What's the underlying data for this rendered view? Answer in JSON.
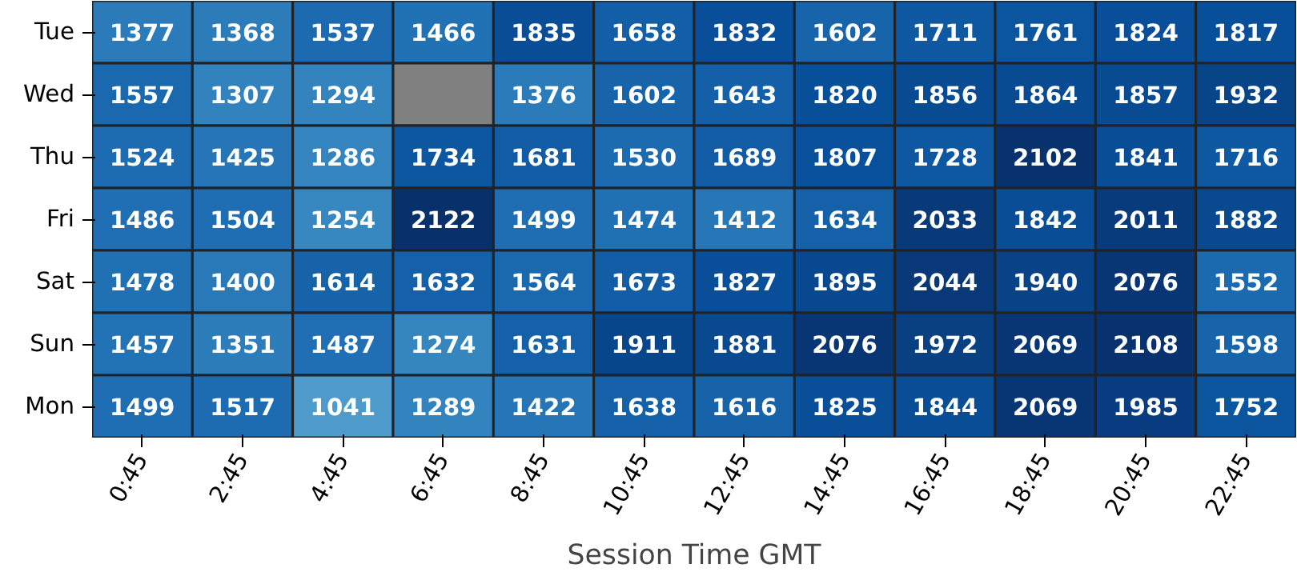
{
  "chart_data": {
    "type": "heatmap",
    "xlabel": "Session Time GMT",
    "categories": [
      "0:45",
      "2:45",
      "4:45",
      "6:45",
      "8:45",
      "10:45",
      "12:45",
      "14:45",
      "16:45",
      "18:45",
      "20:45",
      "22:45"
    ],
    "y_categories": [
      "Tue",
      "Wed",
      "Thu",
      "Fri",
      "Sat",
      "Sun",
      "Mon"
    ],
    "cells": [
      [
        1377,
        1368,
        1537,
        1466,
        1835,
        1658,
        1832,
        1602,
        1711,
        1761,
        1824,
        1817
      ],
      [
        1557,
        1307,
        1294,
        null,
        1376,
        1602,
        1643,
        1820,
        1856,
        1864,
        1857,
        1932
      ],
      [
        1524,
        1425,
        1286,
        1734,
        1681,
        1530,
        1689,
        1807,
        1728,
        2102,
        1841,
        1716
      ],
      [
        1486,
        1504,
        1254,
        2122,
        1499,
        1474,
        1412,
        1634,
        2033,
        1842,
        2011,
        1882
      ],
      [
        1478,
        1400,
        1614,
        1632,
        1564,
        1673,
        1827,
        1895,
        2044,
        1940,
        2076,
        1552
      ],
      [
        1457,
        1351,
        1487,
        1274,
        1631,
        1911,
        1881,
        2076,
        1972,
        2069,
        2108,
        1598
      ],
      [
        1499,
        1517,
        1041,
        1289,
        1422,
        1638,
        1616,
        1825,
        1844,
        2069,
        1985,
        1752
      ]
    ],
    "data_labels": true
  }
}
